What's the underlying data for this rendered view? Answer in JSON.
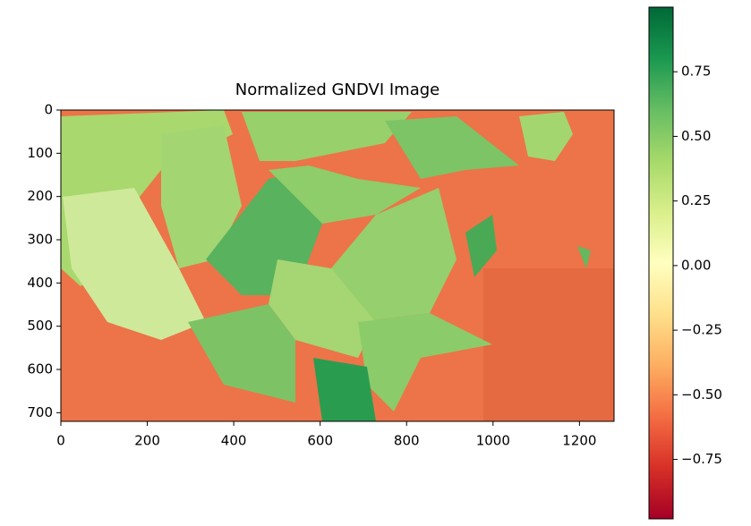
{
  "chart_data": {
    "type": "image",
    "title": "Normalized GNDVI Image",
    "xlim": [
      0,
      1280
    ],
    "xticks": [
      0,
      200,
      400,
      600,
      800,
      1000,
      1200
    ],
    "ylim": [
      720,
      0
    ],
    "yticks": [
      0,
      100,
      200,
      300,
      400,
      500,
      600,
      700
    ],
    "colormap": "RdYlGn",
    "clim": [
      -0.98,
      1.0
    ],
    "cticks": [
      {
        "value": -0.75,
        "label": "−0.75"
      },
      {
        "value": -0.5,
        "label": "−0.50"
      },
      {
        "value": -0.25,
        "label": "−0.25"
      },
      {
        "value": 0,
        "label": "0.00"
      },
      0.25,
      {
        "value": 0.5,
        "label": "0.50"
      },
      0.75
    ]
  }
}
